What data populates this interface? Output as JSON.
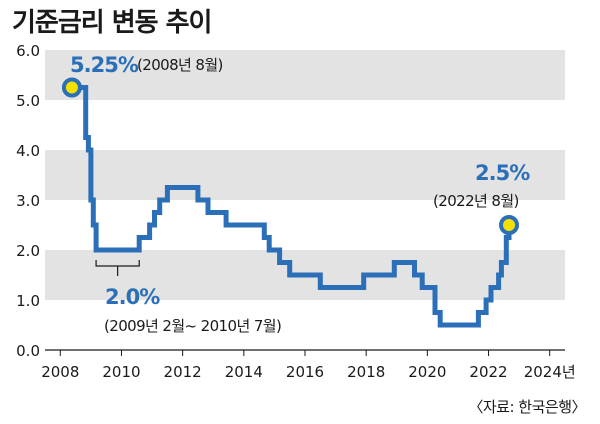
{
  "title": "기준금리 변동 추이",
  "source": "〈자료: 한국은행〉",
  "colors": {
    "line": "#2b6fb8",
    "band": "#e3e3e3",
    "marker_fill": "#f3e000",
    "text": "#1a1a1a",
    "value": "#2b6fb8"
  },
  "chart_data": {
    "type": "line",
    "title": "기준금리 변동 추이",
    "xlabel": "",
    "ylabel": "",
    "ylim": [
      0,
      6
    ],
    "xlim": [
      2007.5,
      2024.5
    ],
    "y_ticks": [
      "0.0",
      "1.0",
      "2.0",
      "3.0",
      "4.0",
      "5.0",
      "6.0"
    ],
    "x_ticks": [
      "2008",
      "2010",
      "2012",
      "2014",
      "2016",
      "2018",
      "2020",
      "2022",
      "2024년"
    ],
    "grid": "alternating horizontal bands",
    "series": [
      {
        "name": "기준금리",
        "step": true,
        "points": [
          [
            2008.38,
            5.25
          ],
          [
            2008.67,
            5.25
          ],
          [
            2008.83,
            4.25
          ],
          [
            2008.92,
            4.0
          ],
          [
            2009.0,
            3.0
          ],
          [
            2009.08,
            2.5
          ],
          [
            2009.17,
            2.0
          ],
          [
            2010.58,
            2.25
          ],
          [
            2010.92,
            2.5
          ],
          [
            2011.08,
            2.75
          ],
          [
            2011.25,
            3.0
          ],
          [
            2011.5,
            3.25
          ],
          [
            2012.5,
            3.0
          ],
          [
            2012.83,
            2.75
          ],
          [
            2013.42,
            2.5
          ],
          [
            2014.67,
            2.25
          ],
          [
            2014.83,
            2.0
          ],
          [
            2015.17,
            1.75
          ],
          [
            2015.5,
            1.5
          ],
          [
            2016.5,
            1.25
          ],
          [
            2017.92,
            1.5
          ],
          [
            2018.92,
            1.75
          ],
          [
            2019.58,
            1.5
          ],
          [
            2019.83,
            1.25
          ],
          [
            2020.25,
            0.75
          ],
          [
            2020.42,
            0.5
          ],
          [
            2021.67,
            0.75
          ],
          [
            2021.92,
            1.0
          ],
          [
            2022.08,
            1.25
          ],
          [
            2022.33,
            1.5
          ],
          [
            2022.42,
            1.75
          ],
          [
            2022.58,
            2.25
          ],
          [
            2022.67,
            2.5
          ]
        ]
      }
    ],
    "annotations": [
      {
        "name": "peak",
        "x": 2008.38,
        "y": 5.25,
        "value": "5.25%",
        "note": "(2008년 8월)",
        "marker": true
      },
      {
        "name": "low",
        "x": 2009.17,
        "x_end": 2010.58,
        "y": 2.0,
        "value": "2.0%",
        "note": "(2009년 2월~ 2010년 7월)",
        "marker": false
      },
      {
        "name": "latest",
        "x": 2022.67,
        "y": 2.5,
        "value": "2.5%",
        "note": "(2022년 8월)",
        "marker": true
      }
    ]
  }
}
